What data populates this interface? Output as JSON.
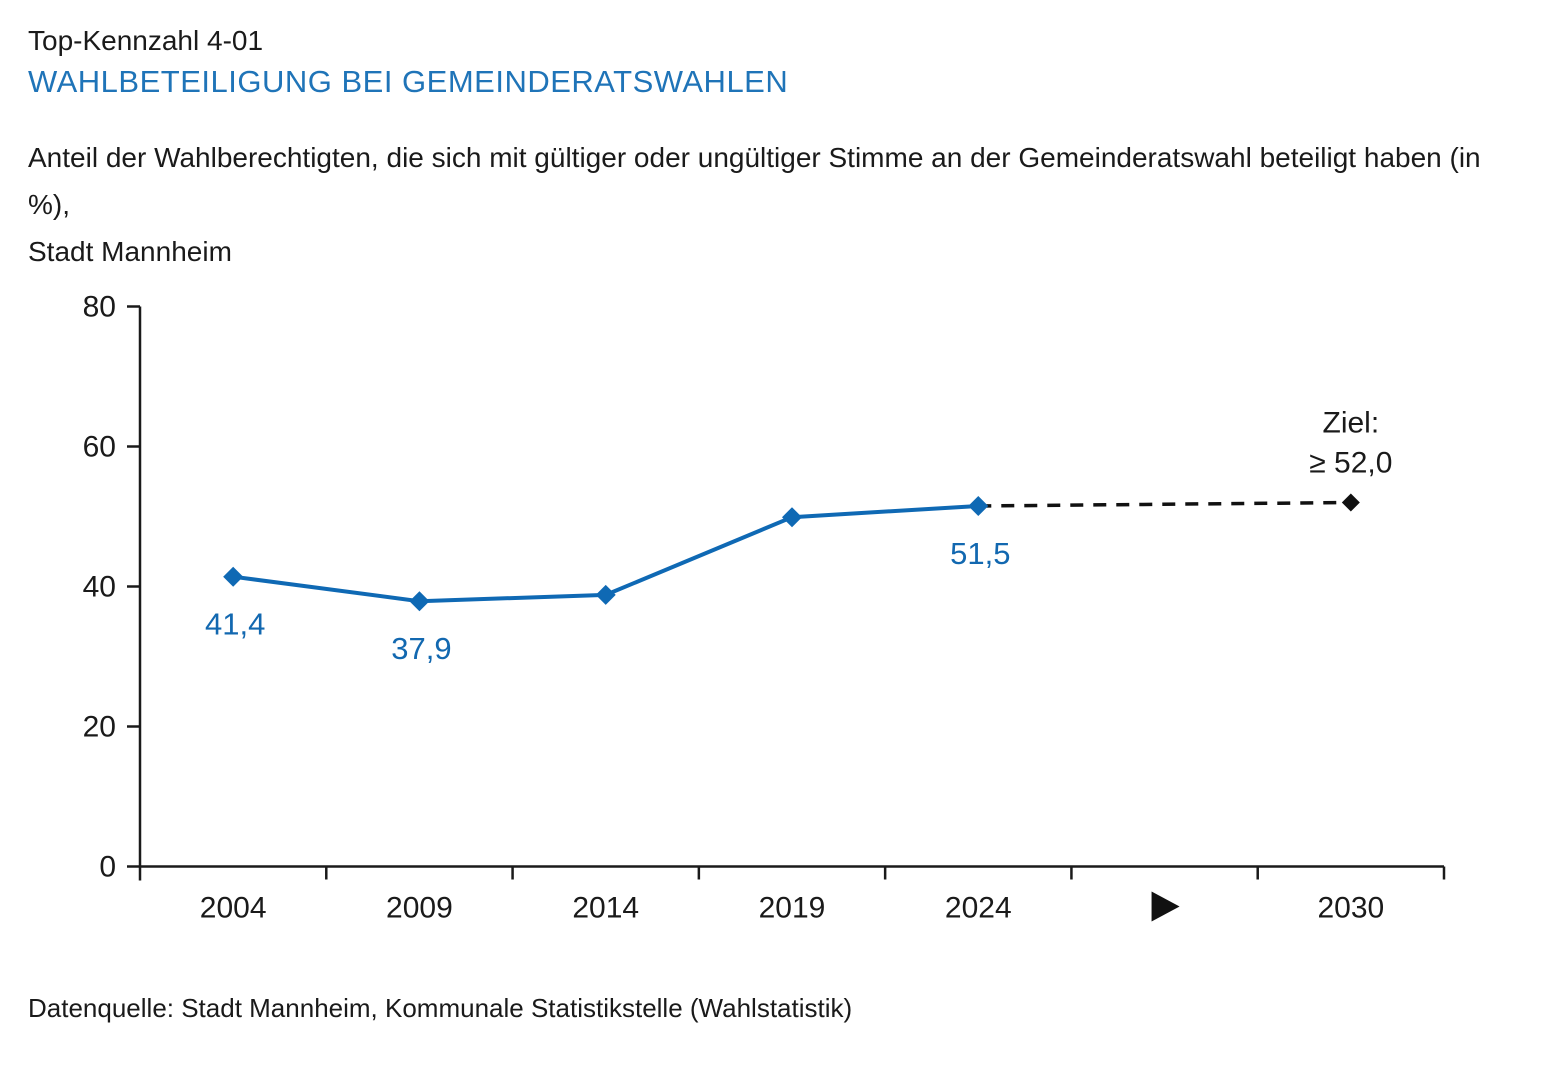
{
  "header": {
    "kicker": "Top-Kennzahl 4-01",
    "title": "WAHLBETEILIGUNG BEI GEMEINDERATSWAHLEN",
    "description_line1": "Anteil der Wahlberechtigten, die sich mit gültiger oder ungültiger Stimme an der Gemeinderatswahl beteiligt haben (in %),",
    "description_line2": "Stadt Mannheim"
  },
  "chart_data": {
    "type": "line",
    "x_slots": [
      "2004",
      "2009",
      "2014",
      "2019",
      "2024",
      "arrow",
      "2030"
    ],
    "series": [
      {
        "name": "Wahlbeteiligung",
        "x": [
          "2004",
          "2009",
          "2014",
          "2019",
          "2024"
        ],
        "values": [
          41.4,
          37.9,
          38.8,
          49.9,
          51.5
        ],
        "point_labels": [
          {
            "x": "2004",
            "text": "41,4"
          },
          {
            "x": "2009",
            "text": "37,9"
          },
          {
            "x": "2024",
            "text": "51,5"
          }
        ]
      }
    ],
    "target": {
      "x": "2030",
      "value": 52.0,
      "label_line1": "Ziel:",
      "label_line2": "≥ 52,0",
      "connector": "dashed"
    },
    "yticks": [
      0,
      20,
      40,
      60,
      80
    ],
    "ylim": [
      0,
      80
    ],
    "grid": false,
    "unit": "%",
    "colors": {
      "line": "#0f69b4",
      "point": "#0f69b4",
      "point_label": "#1268b0",
      "target": "#111111",
      "axis": "#1a1a1a",
      "accent": "#1f74b8"
    }
  },
  "footer": {
    "source": "Datenquelle: Stadt Mannheim, Kommunale Statistikstelle (Wahlstatistik)"
  }
}
